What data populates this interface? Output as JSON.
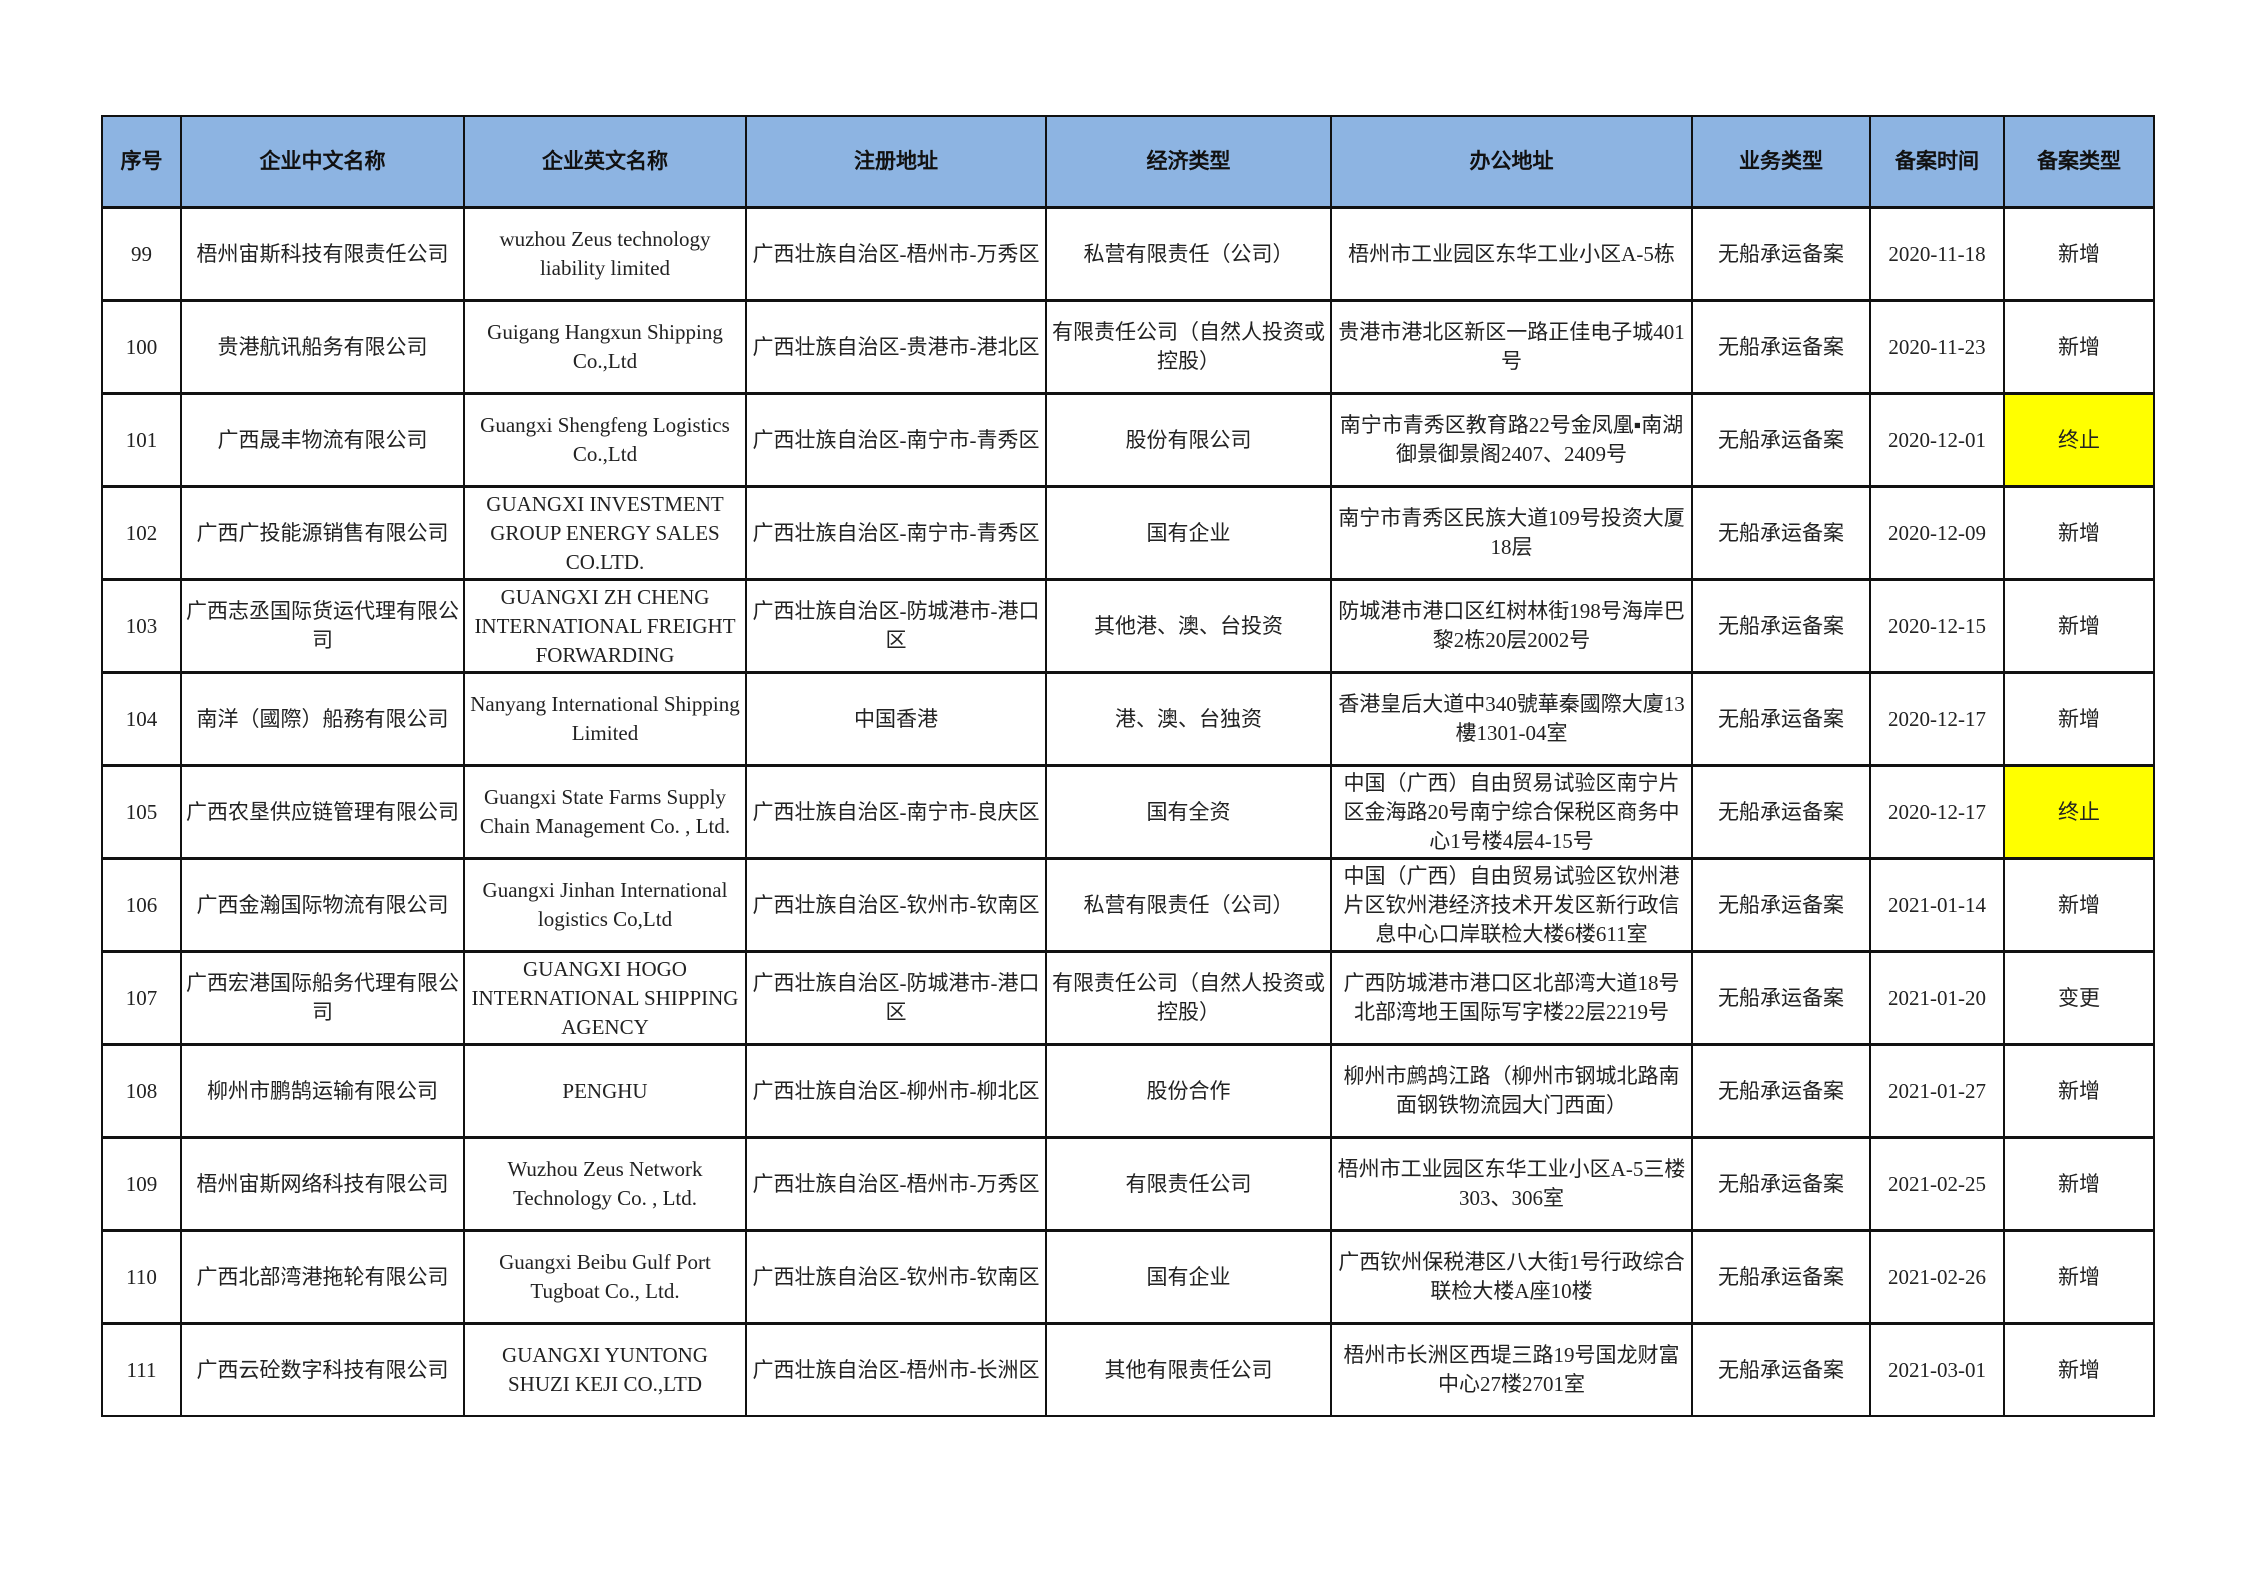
{
  "colors": {
    "header_bg": "#8DB4E2",
    "highlight": "#FFFF00"
  },
  "table": {
    "headers": [
      "序号",
      "企业中文名称",
      "企业英文名称",
      "注册地址",
      "经济类型",
      "办公地址",
      "业务类型",
      "备案时间",
      "备案类型"
    ],
    "rows": [
      {
        "cells": [
          "99",
          "梧州宙斯科技有限责任公司",
          "wuzhou Zeus technology liability limited",
          "广西壮族自治区-梧州市-万秀区",
          "私营有限责任（公司）",
          "梧州市工业园区东华工业小区A-5栋",
          "无船承运备案",
          "2020-11-18",
          "新增"
        ],
        "highlight": false
      },
      {
        "cells": [
          "100",
          "贵港航讯船务有限公司",
          "Guigang Hangxun Shipping Co.,Ltd",
          "广西壮族自治区-贵港市-港北区",
          "有限责任公司（自然人投资或控股）",
          "贵港市港北区新区一路正佳电子城401号",
          "无船承运备案",
          "2020-11-23",
          "新增"
        ],
        "highlight": false
      },
      {
        "cells": [
          "101",
          "广西晟丰物流有限公司",
          "Guangxi Shengfeng Logistics Co.,Ltd",
          "广西壮族自治区-南宁市-青秀区",
          "股份有限公司",
          "南宁市青秀区教育路22号金凤凰▪南湖御景御景阁2407、2409号",
          "无船承运备案",
          "2020-12-01",
          "终止"
        ],
        "highlight": true
      },
      {
        "cells": [
          "102",
          "广西广投能源销售有限公司",
          "GUANGXI INVESTMENT GROUP ENERGY SALES CO.LTD.",
          "广西壮族自治区-南宁市-青秀区",
          "国有企业",
          "南宁市青秀区民族大道109号投资大厦18层",
          "无船承运备案",
          "2020-12-09",
          "新增"
        ],
        "highlight": false
      },
      {
        "cells": [
          "103",
          "广西志丞国际货运代理有限公司",
          "GUANGXI ZH CHENG INTERNATIONAL FREIGHT FORWARDING",
          "广西壮族自治区-防城港市-港口区",
          "其他港、澳、台投资",
          "防城港市港口区红树林街198号海岸巴黎2栋20层2002号",
          "无船承运备案",
          "2020-12-15",
          "新增"
        ],
        "highlight": false
      },
      {
        "cells": [
          "104",
          "南洋（國際）船務有限公司",
          "Nanyang International Shipping Limited",
          "中国香港",
          "港、澳、台独资",
          "香港皇后大道中340號華秦國際大廈13樓1301-04室",
          "无船承运备案",
          "2020-12-17",
          "新增"
        ],
        "highlight": false
      },
      {
        "cells": [
          "105",
          "广西农垦供应链管理有限公司",
          "Guangxi State Farms Supply Chain Management Co. , Ltd.",
          "广西壮族自治区-南宁市-良庆区",
          "国有全资",
          "中国（广西）自由贸易试验区南宁片区金海路20号南宁综合保税区商务中心1号楼4层4-15号",
          "无船承运备案",
          "2020-12-17",
          "终止"
        ],
        "highlight": true
      },
      {
        "cells": [
          "106",
          "广西金瀚国际物流有限公司",
          "Guangxi Jinhan International logistics Co,Ltd",
          "广西壮族自治区-钦州市-钦南区",
          "私营有限责任（公司）",
          "中国（广西）自由贸易试验区钦州港片区钦州港经济技术开发区新行政信息中心口岸联检大楼6楼611室",
          "无船承运备案",
          "2021-01-14",
          "新增"
        ],
        "highlight": false
      },
      {
        "cells": [
          "107",
          "广西宏港国际船务代理有限公司",
          "GUANGXI  HOGO INTERNATIONAL SHIPPING AGENCY",
          "广西壮族自治区-防城港市-港口区",
          "有限责任公司（自然人投资或控股）",
          "广西防城港市港口区北部湾大道18号北部湾地王国际写字楼22层2219号",
          "无船承运备案",
          "2021-01-20",
          "变更"
        ],
        "highlight": false
      },
      {
        "cells": [
          "108",
          "柳州市鹏鹄运输有限公司",
          "PENGHU",
          "广西壮族自治区-柳州市-柳北区",
          "股份合作",
          "柳州市鹧鸪江路（柳州市钢城北路南面钢铁物流园大门西面）",
          "无船承运备案",
          "2021-01-27",
          "新增"
        ],
        "highlight": false
      },
      {
        "cells": [
          "109",
          "梧州宙斯网络科技有限公司",
          "Wuzhou Zeus Network Technology Co. , Ltd.",
          "广西壮族自治区-梧州市-万秀区",
          "有限责任公司",
          "梧州市工业园区东华工业小区A-5三楼303、306室",
          "无船承运备案",
          "2021-02-25",
          "新增"
        ],
        "highlight": false
      },
      {
        "cells": [
          "110",
          "广西北部湾港拖轮有限公司",
          "Guangxi Beibu Gulf Port Tugboat Co., Ltd.",
          "广西壮族自治区-钦州市-钦南区",
          "国有企业",
          "广西钦州保税港区八大街1号行政综合联检大楼A座10楼",
          "无船承运备案",
          "2021-02-26",
          "新增"
        ],
        "highlight": false
      },
      {
        "cells": [
          "111",
          "广西云砼数字科技有限公司",
          "GUANGXI YUNTONG SHUZI KEJI CO.,LTD",
          "广西壮族自治区-梧州市-长洲区",
          "其他有限责任公司",
          "梧州市长洲区西堤三路19号国龙财富中心27楼2701室",
          "无船承运备案",
          "2021-03-01",
          "新增"
        ],
        "highlight": false
      }
    ]
  }
}
